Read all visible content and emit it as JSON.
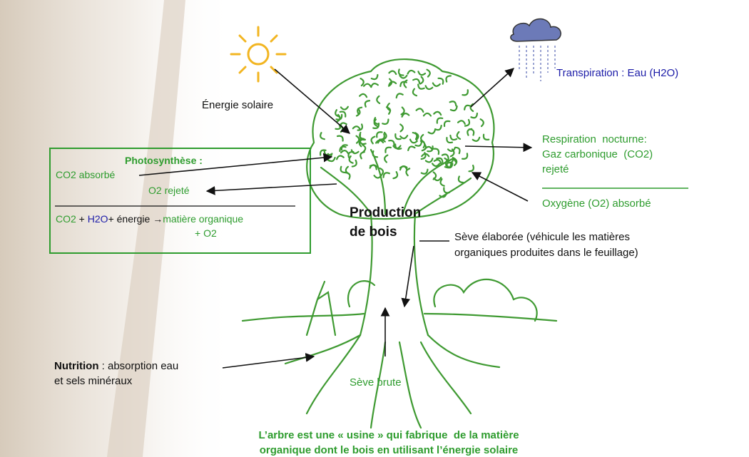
{
  "sun_label": "Énergie solaire",
  "transpiration": "Transpiration : Eau (H2O)",
  "respiration": [
    "Respiration  nocturne:",
    "Gaz carbonique  (CO2)",
    "rejeté"
  ],
  "oxygen": "Oxygène (O2) absorbé",
  "photosynthesis": {
    "title": "Photosynthèse :",
    "co2": "CO2 absorbé",
    "o2": "O2 rejeté",
    "equation": [
      "CO2",
      " + ",
      "H2O",
      "+ énergie →",
      "matière organique",
      "+ O2"
    ]
  },
  "production": [
    "Production",
    "de bois"
  ],
  "seve_elaboree": [
    "Sève élaborée (véhicule les matières",
    "organiques produites dans le feuillage)"
  ],
  "nutrition": {
    "bold": "Nutrition",
    "lines": [
      " : absorption eau",
      "et sels minéraux"
    ]
  },
  "seve_brute": "Sève brute",
  "caption": [
    "L’arbre est une « usine » qui fabrique  de la matière",
    "organique dont le bois en utilisant l’énergie solaire"
  ]
}
